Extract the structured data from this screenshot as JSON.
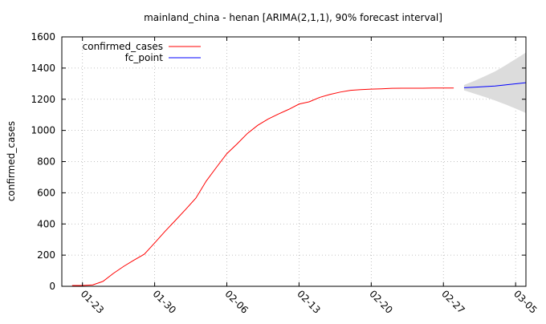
{
  "chart_data": {
    "type": "line",
    "title": "mainland_china - henan [ARIMA(2,1,1), 90% forecast interval]",
    "xlabel": "",
    "ylabel": "confirmed_cases",
    "ylim": [
      0,
      1600
    ],
    "yticks": [
      0,
      200,
      400,
      600,
      800,
      1000,
      1200,
      1400,
      1600
    ],
    "xlim": [
      "2020-01-21",
      "2020-03-06"
    ],
    "xticks": [
      {
        "date": "2020-01-23",
        "label": "01-23"
      },
      {
        "date": "2020-01-30",
        "label": "01-30"
      },
      {
        "date": "2020-02-06",
        "label": "02-06"
      },
      {
        "date": "2020-02-13",
        "label": "02-13"
      },
      {
        "date": "2020-02-20",
        "label": "02-20"
      },
      {
        "date": "2020-02-27",
        "label": "02-27"
      },
      {
        "date": "2020-03-05",
        "label": "03-05"
      }
    ],
    "grid": true,
    "legend_position": "top-left",
    "series": [
      {
        "name": "confirmed_cases",
        "color": "#ff0000",
        "x": [
          "2020-01-22",
          "2020-01-23",
          "2020-01-24",
          "2020-01-25",
          "2020-01-26",
          "2020-01-27",
          "2020-01-28",
          "2020-01-29",
          "2020-01-30",
          "2020-01-31",
          "2020-02-01",
          "2020-02-02",
          "2020-02-03",
          "2020-02-04",
          "2020-02-05",
          "2020-02-06",
          "2020-02-07",
          "2020-02-08",
          "2020-02-09",
          "2020-02-10",
          "2020-02-11",
          "2020-02-12",
          "2020-02-13",
          "2020-02-14",
          "2020-02-15",
          "2020-02-16",
          "2020-02-17",
          "2020-02-18",
          "2020-02-19",
          "2020-02-20",
          "2020-02-21",
          "2020-02-22",
          "2020-02-23",
          "2020-02-24",
          "2020-02-25",
          "2020-02-26",
          "2020-02-27",
          "2020-02-28"
        ],
        "values": [
          5,
          5,
          9,
          32,
          83,
          128,
          168,
          206,
          278,
          352,
          422,
          493,
          566,
          675,
          764,
          851,
          914,
          981,
          1033,
          1073,
          1105,
          1135,
          1169,
          1184,
          1212,
          1231,
          1246,
          1257,
          1262,
          1265,
          1267,
          1270,
          1271,
          1271,
          1271,
          1272,
          1272,
          1272
        ]
      },
      {
        "name": "fc_point",
        "color": "#0000ff",
        "x": [
          "2020-02-29",
          "2020-03-01",
          "2020-03-02",
          "2020-03-03",
          "2020-03-04",
          "2020-03-05",
          "2020-03-06"
        ],
        "values": [
          1274,
          1277,
          1281,
          1285,
          1292,
          1299,
          1306
        ]
      }
    ],
    "forecast_interval": {
      "label": "90% forecast interval",
      "color": "#dcdcdc",
      "x": [
        "2020-02-29",
        "2020-03-01",
        "2020-03-02",
        "2020-03-03",
        "2020-03-04",
        "2020-03-05",
        "2020-03-06"
      ],
      "lower": [
        1257,
        1236,
        1215,
        1192,
        1167,
        1140,
        1112
      ],
      "upper": [
        1291,
        1318,
        1347,
        1378,
        1417,
        1458,
        1500
      ]
    }
  }
}
